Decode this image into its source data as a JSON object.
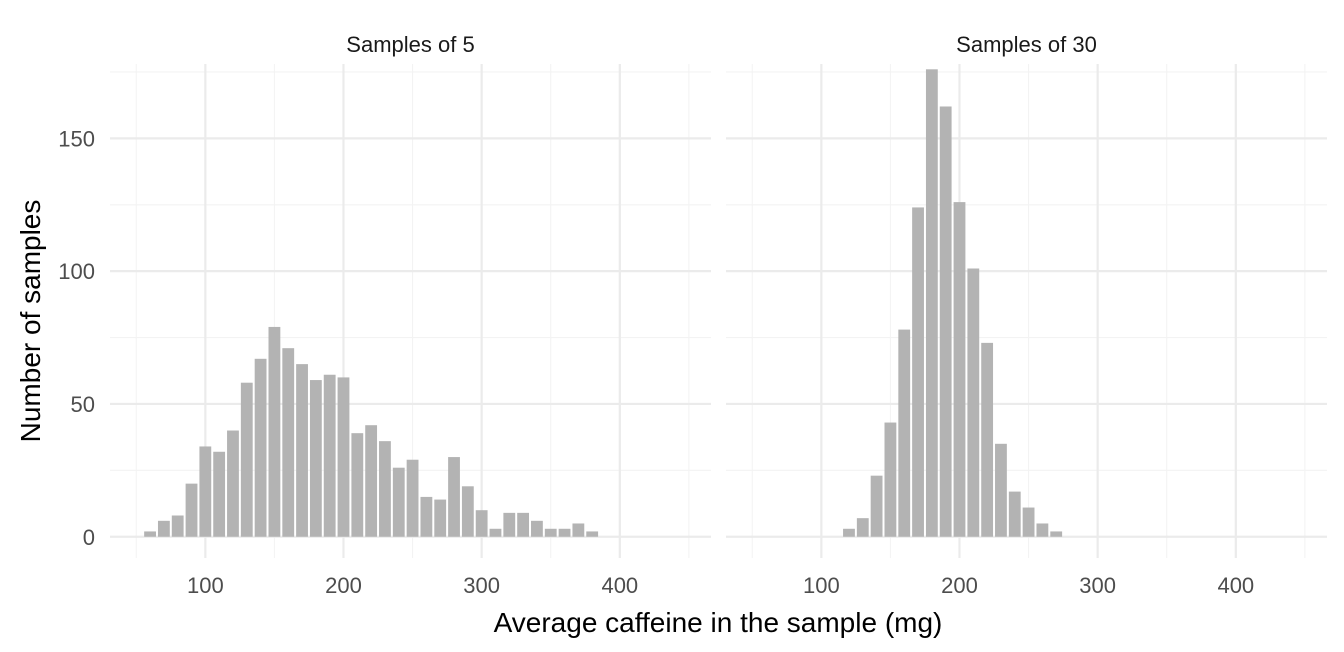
{
  "chart_data": {
    "type": "bar",
    "xlabel": "Average caffeine in the sample (mg)",
    "ylabel": "Number of samples",
    "xlim": [
      31,
      466
    ],
    "ylim": [
      -8,
      178
    ],
    "x_ticks": [
      100,
      200,
      300,
      400
    ],
    "y_ticks": [
      0,
      50,
      100,
      150
    ],
    "grid": true,
    "bin_width": 10,
    "bar_color": "#b3b3b3",
    "panels": [
      {
        "name": "Samples of 5",
        "bins": [
          {
            "x": 60,
            "y": 2
          },
          {
            "x": 70,
            "y": 6
          },
          {
            "x": 80,
            "y": 8
          },
          {
            "x": 90,
            "y": 20
          },
          {
            "x": 100,
            "y": 34
          },
          {
            "x": 110,
            "y": 32
          },
          {
            "x": 120,
            "y": 40
          },
          {
            "x": 130,
            "y": 58
          },
          {
            "x": 140,
            "y": 67
          },
          {
            "x": 150,
            "y": 79
          },
          {
            "x": 160,
            "y": 71
          },
          {
            "x": 170,
            "y": 65
          },
          {
            "x": 180,
            "y": 59
          },
          {
            "x": 190,
            "y": 61
          },
          {
            "x": 200,
            "y": 60
          },
          {
            "x": 210,
            "y": 39
          },
          {
            "x": 220,
            "y": 42
          },
          {
            "x": 230,
            "y": 36
          },
          {
            "x": 240,
            "y": 26
          },
          {
            "x": 250,
            "y": 29
          },
          {
            "x": 260,
            "y": 15
          },
          {
            "x": 270,
            "y": 14
          },
          {
            "x": 280,
            "y": 30
          },
          {
            "x": 290,
            "y": 19
          },
          {
            "x": 300,
            "y": 10
          },
          {
            "x": 310,
            "y": 3
          },
          {
            "x": 320,
            "y": 9
          },
          {
            "x": 330,
            "y": 9
          },
          {
            "x": 340,
            "y": 6
          },
          {
            "x": 350,
            "y": 3
          },
          {
            "x": 360,
            "y": 3
          },
          {
            "x": 370,
            "y": 5
          },
          {
            "x": 380,
            "y": 2
          }
        ]
      },
      {
        "name": "Samples of 30",
        "bins": [
          {
            "x": 120,
            "y": 3
          },
          {
            "x": 130,
            "y": 7
          },
          {
            "x": 140,
            "y": 23
          },
          {
            "x": 150,
            "y": 43
          },
          {
            "x": 160,
            "y": 78
          },
          {
            "x": 170,
            "y": 124
          },
          {
            "x": 180,
            "y": 176
          },
          {
            "x": 190,
            "y": 162
          },
          {
            "x": 200,
            "y": 126
          },
          {
            "x": 210,
            "y": 101
          },
          {
            "x": 220,
            "y": 73
          },
          {
            "x": 230,
            "y": 35
          },
          {
            "x": 240,
            "y": 17
          },
          {
            "x": 250,
            "y": 11
          },
          {
            "x": 260,
            "y": 5
          },
          {
            "x": 270,
            "y": 2
          }
        ]
      }
    ]
  }
}
